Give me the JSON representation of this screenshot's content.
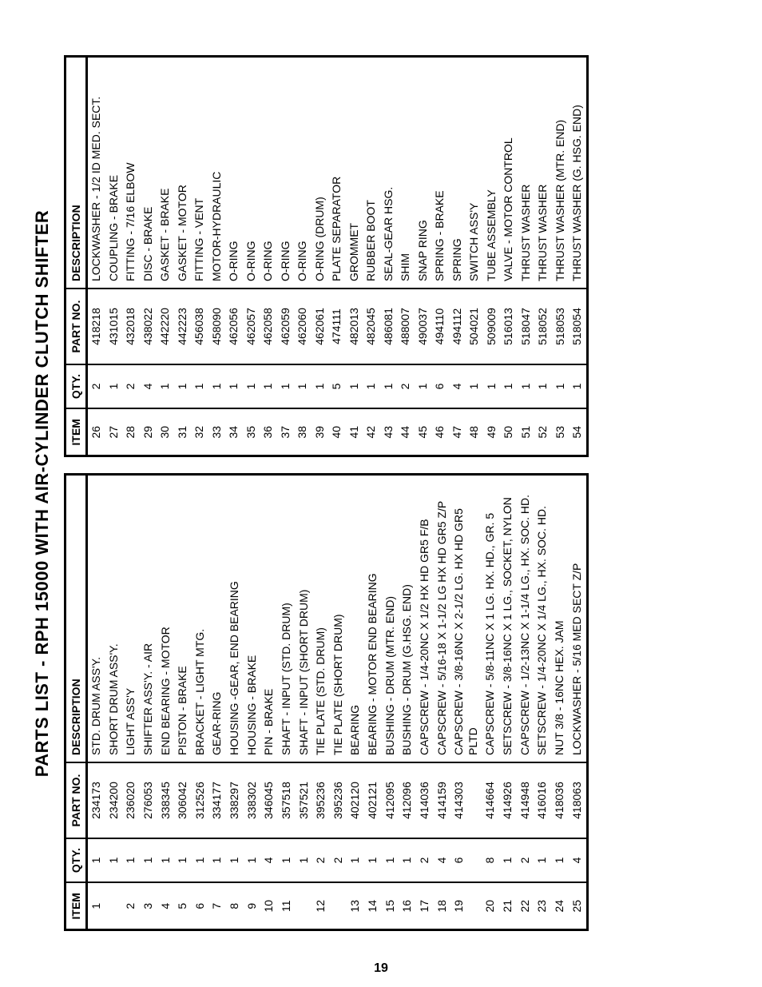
{
  "page": {
    "title": "PARTS LIST - RPH 15000 WITH AIR-CYLINDER CLUTCH SHIFTER",
    "page_number": "19"
  },
  "headers": {
    "item": "ITEM",
    "qty": "QTY.",
    "part_no": "PART NO.",
    "description": "DESCRIPTION"
  },
  "left_rows": [
    {
      "item": "1",
      "qty": "1",
      "part": "234173",
      "desc": "STD. DRUM ASS'Y."
    },
    {
      "item": "",
      "qty": "1",
      "part": "234200",
      "desc": "SHORT DRUM ASS'Y."
    },
    {
      "item": "2",
      "qty": "1",
      "part": "236020",
      "desc": "LIGHT ASS'Y"
    },
    {
      "item": "3",
      "qty": "1",
      "part": "276053",
      "desc": "SHIFTER ASS'Y. - AIR"
    },
    {
      "item": "4",
      "qty": "1",
      "part": "338345",
      "desc": "END BEARING - MOTOR"
    },
    {
      "item": "5",
      "qty": "1",
      "part": "306042",
      "desc": "PISTON - BRAKE"
    },
    {
      "item": "6",
      "qty": "1",
      "part": "312526",
      "desc": "BRACKET - LIGHT MTG."
    },
    {
      "item": "7",
      "qty": "1",
      "part": "334177",
      "desc": "GEAR-RING"
    },
    {
      "item": "8",
      "qty": "1",
      "part": "338297",
      "desc": "HOUSING -GEAR, END BEARING"
    },
    {
      "item": "9",
      "qty": "1",
      "part": "338302",
      "desc": "HOUSING - BRAKE"
    },
    {
      "item": "10",
      "qty": "4",
      "part": "346045",
      "desc": "PIN - BRAKE"
    },
    {
      "item": "11",
      "qty": "1",
      "part": "357518",
      "desc": "SHAFT - INPUT (STD. DRUM)"
    },
    {
      "item": "",
      "qty": "1",
      "part": "357521",
      "desc": "SHAFT - INPUT (SHORT DRUM)"
    },
    {
      "item": "12",
      "qty": "2",
      "part": "395236",
      "desc": "TIE PLATE (STD. DRUM)"
    },
    {
      "item": "",
      "qty": "2",
      "part": "395236",
      "desc": "TIE PLATE (SHORT DRUM)"
    },
    {
      "item": "13",
      "qty": "1",
      "part": "402120",
      "desc": "BEARING"
    },
    {
      "item": "14",
      "qty": "1",
      "part": "402121",
      "desc": "BEARING - MOTOR END BEARING"
    },
    {
      "item": "15",
      "qty": "1",
      "part": "412095",
      "desc": "BUSHING - DRUM (MTR. END)"
    },
    {
      "item": "16",
      "qty": "1",
      "part": "412096",
      "desc": "BUSHING - DRUM (G.HSG. END)"
    },
    {
      "item": "17",
      "qty": "2",
      "part": "414036",
      "desc": "CAPSCREW - 1/4-20NC X 1/2 HX HD GR5 F/B"
    },
    {
      "item": "18",
      "qty": "4",
      "part": "414159",
      "desc": "CAPSCREW - 5/16-18 X 1-1/2 LG HX HD GR5 Z/P"
    },
    {
      "item": "19",
      "qty": "6",
      "part": "414303",
      "desc": "CAPSCREW - 3/8-16NC X 2-1/2 LG. HX HD GR5 PLTD"
    },
    {
      "item": "20",
      "qty": "8",
      "part": "414664",
      "desc": "CAPSCREW - 5/8-11NC X 1 LG. HX. HD., GR. 5"
    },
    {
      "item": "21",
      "qty": "1",
      "part": "414926",
      "desc": "SETSCREW - 3/8-16NC X 1 LG., SOCKET, NYLON"
    },
    {
      "item": "22",
      "qty": "2",
      "part": "414948",
      "desc": "CAPSCREW - 1/2-13NC X 1-1/4 LG., HX. SOC. HD."
    },
    {
      "item": "23",
      "qty": "1",
      "part": "416016",
      "desc": "SETSCREW - 1/4-20NC X 1/4 LG., HX. SOC. HD."
    },
    {
      "item": "24",
      "qty": "1",
      "part": "418036",
      "desc": "NUT 3/8 - 16NC HEX. JAM"
    },
    {
      "item": "25",
      "qty": "4",
      "part": "418063",
      "desc": "LOCKWASHER - 5/16 MED SECT Z/P"
    }
  ],
  "right_rows": [
    {
      "item": "26",
      "qty": "2",
      "part": "418218",
      "desc": "LOCKWASHER - 1/2 ID MED. SECT."
    },
    {
      "item": "27",
      "qty": "1",
      "part": "431015",
      "desc": "COUPLING - BRAKE"
    },
    {
      "item": "28",
      "qty": "2",
      "part": "432018",
      "desc": "FITTING - 7/16 ELBOW"
    },
    {
      "item": "29",
      "qty": "4",
      "part": "438022",
      "desc": "DISC - BRAKE"
    },
    {
      "item": "30",
      "qty": "1",
      "part": "442220",
      "desc": "GASKET - BRAKE"
    },
    {
      "item": "31",
      "qty": "1",
      "part": "442223",
      "desc": "GASKET - MOTOR"
    },
    {
      "item": "32",
      "qty": "1",
      "part": "456038",
      "desc": "FITTING - VENT"
    },
    {
      "item": "33",
      "qty": "1",
      "part": "458090",
      "desc": "MOTOR-HYDRAULIC"
    },
    {
      "item": "34",
      "qty": "1",
      "part": "462056",
      "desc": "O-RING"
    },
    {
      "item": "35",
      "qty": "1",
      "part": "462057",
      "desc": "O-RING"
    },
    {
      "item": "36",
      "qty": "1",
      "part": "462058",
      "desc": "O-RING"
    },
    {
      "item": "37",
      "qty": "1",
      "part": "462059",
      "desc": "O-RING"
    },
    {
      "item": "38",
      "qty": "1",
      "part": "462060",
      "desc": "O-RING"
    },
    {
      "item": "39",
      "qty": "1",
      "part": "462061",
      "desc": "O-RING (DRUM)"
    },
    {
      "item": "40",
      "qty": "5",
      "part": "474111",
      "desc": "PLATE SEPARATOR"
    },
    {
      "item": "41",
      "qty": "1",
      "part": "482013",
      "desc": "GROMMET"
    },
    {
      "item": "42",
      "qty": "1",
      "part": "482045",
      "desc": "RUBBER BOOT"
    },
    {
      "item": "43",
      "qty": "1",
      "part": "486081",
      "desc": "SEAL-GEAR HSG."
    },
    {
      "item": "44",
      "qty": "2",
      "part": "488007",
      "desc": "SHIM"
    },
    {
      "item": "45",
      "qty": "1",
      "part": "490037",
      "desc": "SNAP RING"
    },
    {
      "item": "46",
      "qty": "6",
      "part": "494110",
      "desc": "SPRING - BRAKE"
    },
    {
      "item": "47",
      "qty": "4",
      "part": "494112",
      "desc": "SPRING"
    },
    {
      "item": "48",
      "qty": "1",
      "part": "504021",
      "desc": "SWITCH ASS'Y"
    },
    {
      "item": "49",
      "qty": "1",
      "part": "509009",
      "desc": "TUBE ASSEMBLY"
    },
    {
      "item": "50",
      "qty": "1",
      "part": "516013",
      "desc": "VALVE - MOTOR CONTROL"
    },
    {
      "item": "51",
      "qty": "1",
      "part": "518047",
      "desc": "THRUST WASHER"
    },
    {
      "item": "52",
      "qty": "1",
      "part": "518052",
      "desc": "THRUST WASHER"
    },
    {
      "item": "53",
      "qty": "1",
      "part": "518053",
      "desc": "THRUST WASHER (MTR. END)"
    },
    {
      "item": "54",
      "qty": "1",
      "part": "518054",
      "desc": "THRUST WASHER (G. HSG. END)"
    }
  ]
}
